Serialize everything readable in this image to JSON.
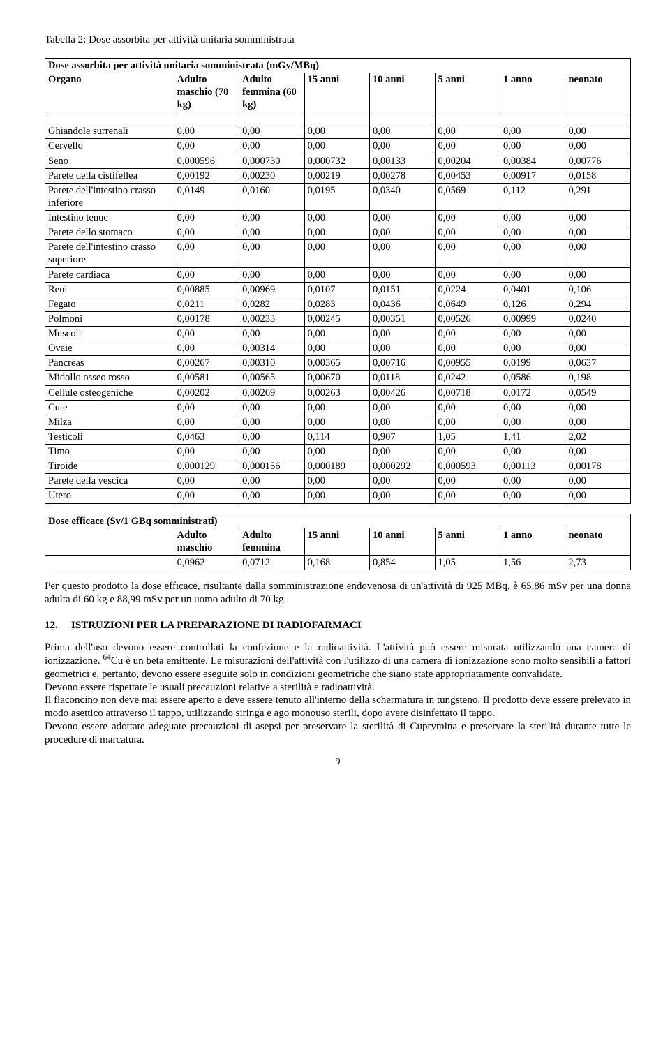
{
  "title1": "Tabella 2: Dose assorbita per attività unitaria somministrata",
  "table1": {
    "heading": "Dose assorbita per attività unitaria somministrata (mGy/MBq)",
    "columns": [
      "Organo",
      "Adulto maschio (70 kg)",
      "Adulto femmina (60 kg)",
      "15 anni",
      "10 anni",
      "5 anni",
      "1 anno",
      "neonato"
    ],
    "rows": [
      [
        "Ghiandole surrenali",
        "0,00",
        "0,00",
        "0,00",
        "0,00",
        "0,00",
        "0,00",
        "0,00"
      ],
      [
        "Cervello",
        "0,00",
        "0,00",
        "0,00",
        "0,00",
        "0,00",
        "0,00",
        "0,00"
      ],
      [
        "Seno",
        "0,000596",
        "0,000730",
        "0,000732",
        "0,00133",
        "0,00204",
        "0,00384",
        "0,00776"
      ],
      [
        "Parete della cistifellea",
        "0,00192",
        "0,00230",
        "0,00219",
        "0,00278",
        "0,00453",
        "0,00917",
        "0,0158"
      ],
      [
        "Parete dell'intestino crasso inferiore",
        "0,0149",
        "0,0160",
        "0,0195",
        "0,0340",
        "0,0569",
        "0,112",
        "0,291"
      ],
      [
        "Intestino tenue",
        "0,00",
        "0,00",
        "0,00",
        "0,00",
        "0,00",
        "0,00",
        "0,00"
      ],
      [
        "Parete dello stomaco",
        "0,00",
        "0,00",
        "0,00",
        "0,00",
        "0,00",
        "0,00",
        "0,00"
      ],
      [
        "Parete dell'intestino crasso superiore",
        "0,00",
        "0,00",
        "0,00",
        "0,00",
        "0,00",
        "0,00",
        "0,00"
      ],
      [
        "Parete cardiaca",
        "0,00",
        "0,00",
        "0,00",
        "0,00",
        "0,00",
        "0,00",
        "0,00"
      ],
      [
        "Reni",
        "0,00885",
        "0,00969",
        "0,0107",
        "0,0151",
        "0,0224",
        "0,0401",
        "0,106"
      ],
      [
        "Fegato",
        "0,0211",
        "0,0282",
        "0,0283",
        "0,0436",
        "0,0649",
        "0,126",
        "0,294"
      ],
      [
        "Polmoni",
        "0,00178",
        "0,00233",
        "0,00245",
        "0,00351",
        "0,00526",
        "0,00999",
        "0,0240"
      ],
      [
        "Muscoli",
        "0,00",
        "0,00",
        "0,00",
        "0,00",
        "0,00",
        "0,00",
        "0,00"
      ],
      [
        "Ovaie",
        "0,00",
        "0,00314",
        "0,00",
        "0,00",
        "0,00",
        "0,00",
        "0,00"
      ],
      [
        "Pancreas",
        "0,00267",
        "0,00310",
        "0,00365",
        "0,00716",
        "0,00955",
        "0,0199",
        "0,0637"
      ],
      [
        "Midollo osseo rosso",
        "0,00581",
        "0,00565",
        "0,00670",
        "0,0118",
        "0,0242",
        "0,0586",
        "0,198"
      ],
      [
        "Cellule osteogeniche",
        "0,00202",
        "0,00269",
        "0,00263",
        "0,00426",
        "0,00718",
        "0,0172",
        "0,0549"
      ],
      [
        "Cute",
        "0,00",
        "0,00",
        "0,00",
        "0,00",
        "0,00",
        "0,00",
        "0,00"
      ],
      [
        "Milza",
        "0,00",
        "0,00",
        "0,00",
        "0,00",
        "0,00",
        "0,00",
        "0,00"
      ],
      [
        "Testicoli",
        "0,0463",
        "0,00",
        "0,114",
        "0,907",
        "1,05",
        "1,41",
        "2,02"
      ],
      [
        "Timo",
        "0,00",
        "0,00",
        "0,00",
        "0,00",
        "0,00",
        "0,00",
        "0,00"
      ],
      [
        "Tiroide",
        "0,000129",
        "0,000156",
        "0,000189",
        "0,000292",
        "0,000593",
        "0,00113",
        "0,00178"
      ],
      [
        "Parete della vescica",
        "0,00",
        "0,00",
        "0,00",
        "0,00",
        "0,00",
        "0,00",
        "0,00"
      ],
      [
        "Utero",
        "0,00",
        "0,00",
        "0,00",
        "0,00",
        "0,00",
        "0,00",
        "0,00"
      ]
    ]
  },
  "table2": {
    "heading": "Dose efficace (Sv/1 GBq somministrati)",
    "columns": [
      "",
      "Adulto maschio",
      "Adulto femmina",
      "15 anni",
      "10 anni",
      "5 anni",
      "1 anno",
      "neonato"
    ],
    "rows": [
      [
        "",
        "0,0962",
        "0,0712",
        "0,168",
        "0,854",
        "1,05",
        "1,56",
        "2,73"
      ]
    ]
  },
  "paragraph1": "Per questo prodotto la dose efficace, risultante dalla somministrazione endovenosa di un'attività di 925 MBq, è 65,86 mSv per una donna adulta di 60 kg e 88,99 mSv per un uomo adulto di 70 kg.",
  "section12": {
    "num": "12.",
    "title": "ISTRUZIONI PER LA PREPARAZIONE DI RADIOFARMACI"
  },
  "paragraph2_parts": {
    "a": "Prima dell'uso devono essere controllati la confezione e la radioattività. L'attività può essere misurata utilizzando una camera di ionizzazione. ",
    "b": "Cu è un beta emittente. Le misurazioni dell'attività con l'utilizzo di una camera di ionizzazione sono molto sensibili a fattori geometrici e, pertanto, devono essere eseguite solo in condizioni geometriche che siano state appropriatamente convalidate."
  },
  "paragraph3": "Devono essere rispettate le usuali precauzioni relative a sterilità e radioattività.",
  "paragraph4": "Il flaconcino non deve mai essere aperto e deve essere tenuto all'interno della schermatura in tungsteno. Il prodotto deve essere prelevato in modo asettico attraverso il tappo, utilizzando siringa e ago monouso sterili, dopo avere disinfettato il tappo.",
  "paragraph5": "Devono essere adottate adeguate precauzioni di asepsi per preservare la sterilità di Cuprymina e preservare la sterilità durante tutte le procedure di marcatura.",
  "page_number": "9",
  "isotope_sup": "64"
}
